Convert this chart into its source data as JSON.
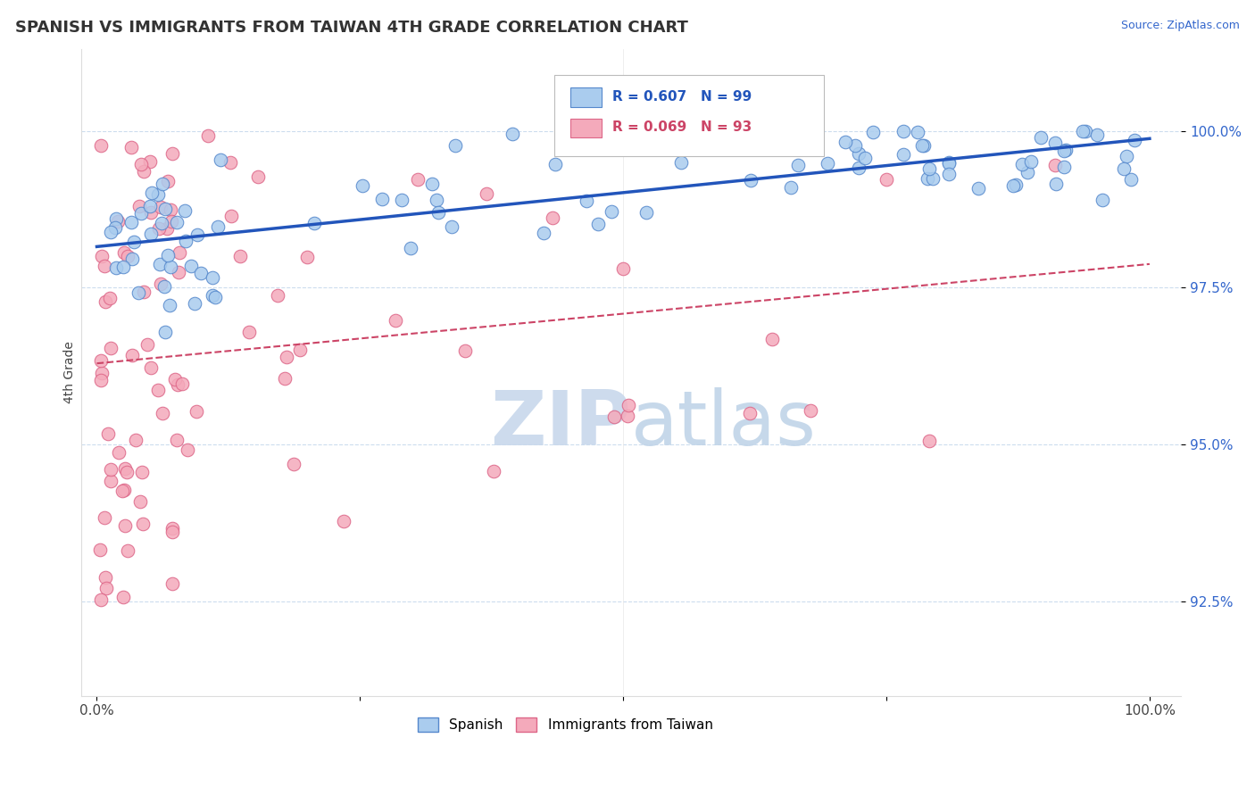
{
  "title": "SPANISH VS IMMIGRANTS FROM TAIWAN 4TH GRADE CORRELATION CHART",
  "source_text": "Source: ZipAtlas.com",
  "ylabel": "4th Grade",
  "x_tick_labels": [
    "0.0%",
    "",
    "",
    "",
    "100.0%"
  ],
  "y_tick_values": [
    92.5,
    95.0,
    97.5,
    100.0
  ],
  "legend_labels": [
    "Spanish",
    "Immigrants from Taiwan"
  ],
  "R_spanish": 0.607,
  "N_spanish": 99,
  "R_taiwan": 0.069,
  "N_taiwan": 93,
  "trendline_spanish_color": "#2255bb",
  "trendline_taiwan_color": "#cc4466",
  "dot_spanish_color": "#aaccee",
  "dot_taiwan_color": "#f4aabb",
  "dot_edge_spanish": "#5588cc",
  "dot_edge_taiwan": "#dd6688",
  "background_color": "#ffffff",
  "title_fontsize": 13,
  "grid_color": "#ccddee",
  "ytick_color": "#3366cc",
  "watermark_zip_color": "#c8d8ec",
  "watermark_atlas_color": "#c0d4e8"
}
